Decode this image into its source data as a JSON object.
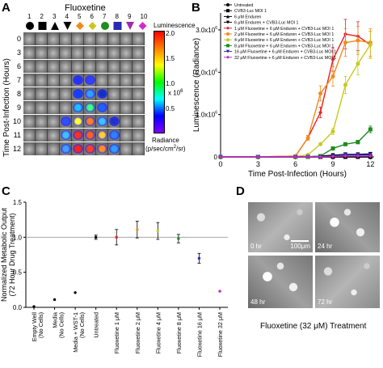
{
  "panels": {
    "a": "A",
    "b": "B",
    "c": "C",
    "d": "D"
  },
  "panel_a": {
    "title": "Fluoxetine",
    "well_numbers": [
      "1",
      "2",
      "3",
      "4",
      "5",
      "6",
      "7",
      "8",
      "9",
      "10"
    ],
    "row_labels": [
      "0",
      "3",
      "6",
      "7",
      "8",
      "9",
      "10",
      "11",
      "12"
    ],
    "y_label": "Time Post-Infection (Hours)",
    "colorbar_title": "Luminescence",
    "colorbar_ticks": [
      "2.0",
      "1.5",
      "1.0",
      "0.5"
    ],
    "colorbar_scale": "x 10",
    "colorbar_scale_exp": "6",
    "colorbar_unit_1": "Radiance",
    "colorbar_unit_2": "(p/sec/cm",
    "colorbar_unit_sup": "2",
    "colorbar_unit_3": "/sr)",
    "marker_colors": [
      "#000000",
      "#000000",
      "#000000",
      "#000000",
      "#ff2a2a",
      "#f28a1a",
      "#c8c81e",
      "#1e8c1e",
      "#2b2bb0",
      "#a02ab0",
      "#d22ad2"
    ]
  },
  "panel_d": {
    "images": [
      "0 hr",
      "24 hr",
      "48 hr",
      "72 hr"
    ],
    "scale_bar": "100μm",
    "caption": "Fluoxetine (32 μM) Treatment"
  },
  "chart_data": [
    {
      "type": "line",
      "xlabel": "Time Post-Infection (Hours)",
      "ylabel": "Luminescence (Radiance)",
      "x": [
        0,
        3,
        6,
        7,
        8,
        9,
        10,
        11,
        12
      ],
      "xticks": [
        "0",
        "3",
        "6",
        "9",
        "12"
      ],
      "xlim": [
        0,
        12.3
      ],
      "ylim": [
        0,
        3.4
      ],
      "yticks": [
        {
          "v": 0,
          "t": "0"
        },
        {
          "v": 1,
          "t": "1.0x10",
          "sup": "6"
        },
        {
          "v": 2,
          "t": "2.0x10",
          "sup": "6"
        },
        {
          "v": 3,
          "t": "3.0x10",
          "sup": "6"
        }
      ],
      "series": [
        {
          "name": "Untreated",
          "color": "#000000",
          "marker": "circle",
          "values": [
            0,
            0,
            0,
            0,
            0,
            0,
            0,
            0,
            0
          ]
        },
        {
          "name": "CVB3-Luc MOI 1",
          "color": "#000000",
          "marker": "square",
          "values": [
            0,
            0,
            0,
            0,
            0,
            0.01,
            0.01,
            0.01,
            0.01
          ]
        },
        {
          "name": "6 μM Enduren",
          "color": "#000000",
          "marker": "triangle",
          "values": [
            0,
            0,
            0,
            0,
            0,
            0,
            0,
            0,
            0
          ]
        },
        {
          "name": "6 μM Enduren + CVB3-Luc MOI 1",
          "color": "#000000",
          "marker": "triangle-down",
          "values": [
            0,
            0,
            0,
            0,
            0.02,
            0.04,
            0.06,
            0.06,
            0.07
          ]
        },
        {
          "name": "1 μM Fluoxetine + 6 μM Enduren + CVB3-Luc MOI 1",
          "color": "#e82020",
          "marker": "diamond",
          "values": [
            0,
            0,
            0.02,
            0.45,
            1.05,
            2.3,
            2.9,
            2.85,
            2.65
          ]
        },
        {
          "name": "2 μM Fluoxetine + 6 μM Enduren + CVB3-Luc MOI 1",
          "color": "#f28a1a",
          "marker": "circle",
          "values": [
            0,
            0,
            0.02,
            0.45,
            1.5,
            1.9,
            2.7,
            2.75,
            2.7
          ]
        },
        {
          "name": "4 μM Fluoxetine + 6 μM Enduren + CVB3-Luc MOI 1",
          "color": "#c8c81e",
          "marker": "circle",
          "values": [
            0,
            0,
            0.01,
            0.05,
            0.3,
            0.6,
            1.7,
            2.2,
            2.65
          ]
        },
        {
          "name": "8 μM Fluoxetine + 6 μM Enduren + CVB3-Luc MOI 1",
          "color": "#1e8c1e",
          "marker": "square",
          "values": [
            0,
            0,
            0,
            0,
            0.02,
            0.2,
            0.3,
            0.35,
            0.65
          ]
        },
        {
          "name": "16 μM Fluoxetine + 6 μM Enduren + CVB3-Luc MOI 1",
          "color": "#2b2bb0",
          "marker": "triangle-down",
          "values": [
            0,
            0,
            0,
            0,
            0,
            0.02,
            0.05,
            0.05,
            0.05
          ]
        },
        {
          "name": "32 μM Fluoxetine + 6 μM Enduren + CVB3-Luc MOI 1",
          "color": "#c22ac2",
          "marker": "diamond",
          "values": [
            0,
            0,
            0,
            0,
            0,
            0.01,
            0.02,
            0.02,
            0.02
          ]
        }
      ]
    },
    {
      "type": "scatter",
      "ylabel": "Normalized Metabolic Output",
      "ylabel2": "(72 Hour Drug Treatment)",
      "ylim": [
        0,
        1.5
      ],
      "yticks": [
        "0.0",
        "0.5",
        "1.0",
        "1.5"
      ],
      "reference_line": 1.0,
      "categories": [
        "Empty Well",
        "Media",
        "Media + WST-1",
        "Untreated",
        "Fluoxetine 1 μM",
        "Fluoxetine 2 μM",
        "Fluoxetine 4 μM",
        "Fluoxetine 8 μM",
        "Fluoxetine 16 μM",
        "Fluoxetine 32 μM"
      ],
      "category_sublabels": [
        "(No Cells)",
        "(No Cells)",
        "(No Cells)",
        "",
        "",
        "",
        "",
        "",
        "",
        ""
      ],
      "values": [
        0.01,
        0.11,
        0.21,
        1.0,
        1.0,
        1.11,
        1.09,
        0.98,
        0.7,
        0.23
      ],
      "errors": [
        0.01,
        0.01,
        0.01,
        0.03,
        0.11,
        0.12,
        0.12,
        0.06,
        0.07,
        0.01
      ],
      "colors": [
        "#000000",
        "#000000",
        "#000000",
        "#000000",
        "#e82020",
        "#f28a1a",
        "#c8c81e",
        "#1e8c1e",
        "#2b2bb0",
        "#c22ac2"
      ]
    }
  ]
}
